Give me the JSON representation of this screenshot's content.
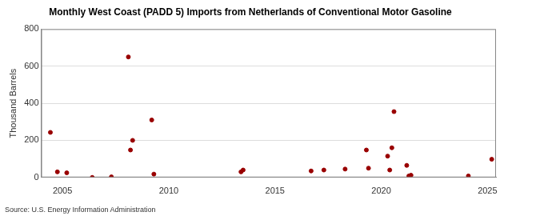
{
  "chart_data": {
    "type": "scatter",
    "title": "Monthly West Coast (PADD 5) Imports from Netherlands of Conventional Motor Gasoline",
    "y_label": "Thousand Barrels",
    "source": "Source: U.S. Energy Information Administration",
    "x": [
      2004.43,
      2004.76,
      2005.2,
      2006.4,
      2007.3,
      2008.1,
      2008.2,
      2008.3,
      2009.2,
      2009.3,
      2013.4,
      2013.5,
      2016.7,
      2017.3,
      2018.3,
      2019.3,
      2019.4,
      2020.3,
      2020.4,
      2020.5,
      2020.6,
      2021.2,
      2021.3,
      2021.4,
      2024.1,
      2025.2
    ],
    "values": [
      243,
      30,
      25,
      0,
      3,
      650,
      148,
      200,
      310,
      18,
      30,
      40,
      35,
      40,
      45,
      148,
      50,
      115,
      40,
      160,
      355,
      65,
      8,
      12,
      8,
      98
    ],
    "color": "#990000",
    "marker": "circle",
    "xlim": [
      2004,
      2025.4
    ],
    "xticks": [
      2005,
      2010,
      2015,
      2020,
      2025
    ],
    "ylim": [
      0,
      800
    ],
    "yticks": [
      0,
      200,
      400,
      600,
      800
    ],
    "grid": true
  }
}
